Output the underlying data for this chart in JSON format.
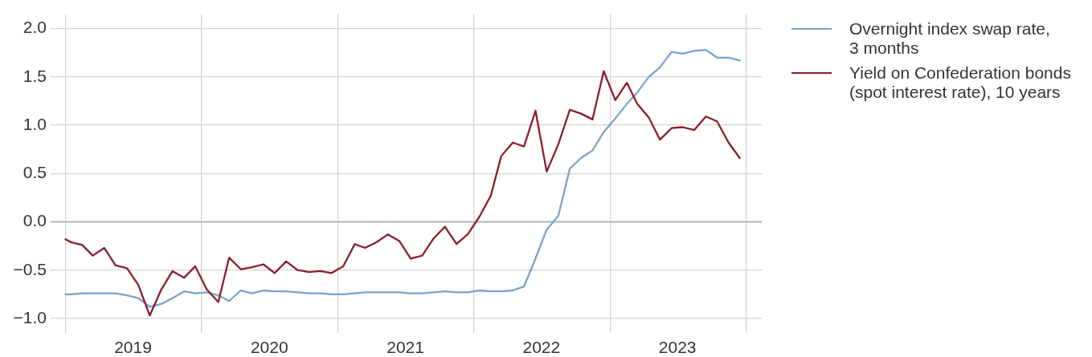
{
  "chart_data": {
    "type": "line",
    "x": [
      "2019-01-01",
      "2019-01-15",
      "2019-02-15",
      "2019-03-15",
      "2019-04-15",
      "2019-05-15",
      "2019-06-15",
      "2019-07-15",
      "2019-08-15",
      "2019-09-15",
      "2019-10-15",
      "2019-11-15",
      "2019-12-15",
      "2020-01-15",
      "2020-02-15",
      "2020-03-15",
      "2020-04-15",
      "2020-05-15",
      "2020-06-15",
      "2020-07-15",
      "2020-08-15",
      "2020-09-15",
      "2020-10-15",
      "2020-11-15",
      "2020-12-15",
      "2021-01-15",
      "2021-02-15",
      "2021-03-15",
      "2021-04-15",
      "2021-05-15",
      "2021-06-15",
      "2021-07-15",
      "2021-08-15",
      "2021-09-15",
      "2021-10-15",
      "2021-11-15",
      "2021-12-15",
      "2022-01-15",
      "2022-02-15",
      "2022-03-15",
      "2022-04-15",
      "2022-05-15",
      "2022-06-15",
      "2022-07-15",
      "2022-08-15",
      "2022-09-15",
      "2022-10-15",
      "2022-11-15",
      "2022-12-15",
      "2023-01-15",
      "2023-02-15",
      "2023-03-15",
      "2023-04-15",
      "2023-05-15",
      "2023-06-15",
      "2023-07-15",
      "2023-08-15",
      "2023-09-15",
      "2023-10-15",
      "2023-11-15",
      "2023-12-15"
    ],
    "series": [
      {
        "name": "Overnight index swap rate,\n3 months",
        "color": "#7ba3c9",
        "values": [
          -0.75,
          -0.75,
          -0.74,
          -0.74,
          -0.74,
          -0.74,
          -0.76,
          -0.79,
          -0.88,
          -0.85,
          -0.79,
          -0.72,
          -0.74,
          -0.73,
          -0.76,
          -0.82,
          -0.71,
          -0.74,
          -0.71,
          -0.72,
          -0.72,
          -0.73,
          -0.74,
          -0.74,
          -0.75,
          -0.75,
          -0.74,
          -0.73,
          -0.73,
          -0.73,
          -0.73,
          -0.74,
          -0.74,
          -0.73,
          -0.72,
          -0.73,
          -0.73,
          -0.71,
          -0.72,
          -0.72,
          -0.71,
          -0.67,
          -0.38,
          -0.08,
          0.06,
          0.55,
          0.66,
          0.74,
          0.93,
          1.07,
          1.22,
          1.34,
          1.5,
          1.6,
          1.76,
          1.74,
          1.77,
          1.78,
          1.7,
          1.7,
          1.67
        ]
      },
      {
        "name": "Yield on Confederation bonds\n(spot interest rate), 10 years",
        "color": "#8c1d2c",
        "values": [
          -0.18,
          -0.21,
          -0.24,
          -0.35,
          -0.27,
          -0.45,
          -0.48,
          -0.65,
          -0.97,
          -0.7,
          -0.51,
          -0.58,
          -0.46,
          -0.7,
          -0.83,
          -0.37,
          -0.49,
          -0.47,
          -0.44,
          -0.53,
          -0.41,
          -0.5,
          -0.52,
          -0.51,
          -0.53,
          -0.46,
          -0.23,
          -0.27,
          -0.21,
          -0.13,
          -0.2,
          -0.38,
          -0.35,
          -0.17,
          -0.05,
          -0.23,
          -0.13,
          0.05,
          0.27,
          0.68,
          0.82,
          0.78,
          1.15,
          0.52,
          0.8,
          1.16,
          1.12,
          1.06,
          1.56,
          1.26,
          1.44,
          1.22,
          1.08,
          0.85,
          0.97,
          0.98,
          0.95,
          1.09,
          1.04,
          0.82,
          0.66
        ]
      }
    ],
    "xlim": [
      "2018-11-22",
      "2024-02-12"
    ],
    "xticks": [
      {
        "value": "2019-01-01",
        "label": null
      },
      {
        "value": "2019-07-01",
        "label": "2019"
      },
      {
        "value": "2020-01-01",
        "label": null
      },
      {
        "value": "2020-07-01",
        "label": "2020"
      },
      {
        "value": "2021-01-01",
        "label": null
      },
      {
        "value": "2021-07-01",
        "label": "2021"
      },
      {
        "value": "2022-01-01",
        "label": null
      },
      {
        "value": "2022-07-01",
        "label": "2022"
      },
      {
        "value": "2023-01-01",
        "label": null
      },
      {
        "value": "2023-07-01",
        "label": "2023"
      },
      {
        "value": "2024-01-01",
        "label": null
      }
    ],
    "ylim": [
      -1.15,
      2.15
    ],
    "yticks": [
      {
        "value": -1,
        "label": "−1.0"
      },
      {
        "value": -0.5,
        "label": "−0.5"
      },
      {
        "value": 0,
        "label": "0.0"
      },
      {
        "value": 0.5,
        "label": "0.5"
      },
      {
        "value": 1,
        "label": "1.0"
      },
      {
        "value": 1.5,
        "label": "1.5"
      },
      {
        "value": 2,
        "label": "2.0"
      }
    ],
    "grid": true,
    "legend": "right",
    "marker": "none",
    "ref_lines": [
      {
        "axis": "y",
        "value": 0,
        "color": "#b5b5b5"
      }
    ]
  }
}
